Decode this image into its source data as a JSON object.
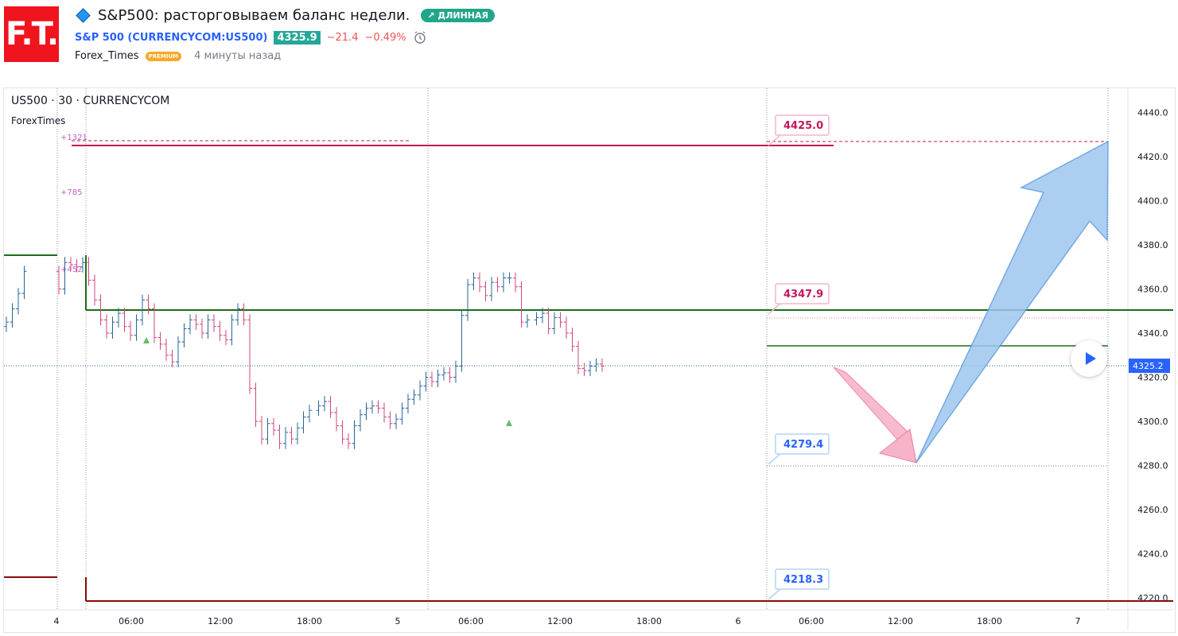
{
  "header": {
    "logo": "F.T.",
    "title": "S&P500: расторговываем баланс недели.",
    "badge": "↗ ДЛИННАЯ",
    "symbol_link": "S&P 500 (CURRENCYCOM:US500)",
    "price": "4325.9",
    "change": "−21.4",
    "change_pct": "−0.49%",
    "author": "Forex_Times",
    "author_badge": "PREMIUM",
    "time_ago": "4 минуты назад"
  },
  "chart": {
    "title": "US500 · 30 · CURRENCYCOM",
    "subtitle": "ForexTimes",
    "y_ticks": [
      "4440.0",
      "4420.0",
      "4400.0",
      "4380.0",
      "4360.0",
      "4340.0",
      "4320.0",
      "4300.0",
      "4280.0",
      "4260.0",
      "4240.0",
      "4220.0"
    ],
    "x_ticks": [
      "4",
      "06:00",
      "12:00",
      "18:00",
      "5",
      "06:00",
      "12:00",
      "18:00",
      "6",
      "06:00",
      "12:00",
      "18:00",
      "7"
    ],
    "current_price_label": "4325.2",
    "level_labels": [
      "4425.0",
      "4347.9",
      "4279.4",
      "4218.3"
    ],
    "vp_labels": [
      "+1321",
      "+785",
      "+452"
    ],
    "colors": {
      "up": "#2a6496",
      "down": "#d0467e",
      "green": "#1b6e1b",
      "darkred": "#8b0a0a",
      "magenta": "#c2185b",
      "blue_arrow": "#9ec7ef",
      "pink_arrow": "#f7b4c8"
    }
  },
  "chart_data": {
    "type": "ohlc",
    "title": "US500 · 30 · CURRENCYCOM",
    "ylim": [
      4215,
      4445
    ],
    "x": [
      "4",
      "06:00",
      "12:00",
      "18:00",
      "5",
      "06:00",
      "12:00",
      "18:00",
      "6",
      "06:00",
      "12:00",
      "18:00",
      "7"
    ],
    "closes": [
      4345,
      4351,
      4358,
      4368,
      4360,
      4372,
      4371,
      4370,
      4372,
      4364,
      4355,
      4346,
      4340,
      4345,
      4349,
      4343,
      4339,
      4346,
      4355,
      4351,
      4338,
      4335,
      4330,
      4327,
      4336,
      4342,
      4346,
      4344,
      4340,
      4346,
      4343,
      4339,
      4337,
      4346,
      4351,
      4346,
      4315,
      4300,
      4292,
      4299,
      4296,
      4290,
      4295,
      4292,
      4297,
      4302,
      4305,
      4307,
      4309,
      4304,
      4298,
      4292,
      4290,
      4298,
      4303,
      4306,
      4307,
      4306,
      4302,
      4299,
      4301,
      4306,
      4310,
      4312,
      4316,
      4320,
      4318,
      4321,
      4322,
      4320,
      4325,
      4348,
      4362,
      4365,
      4361,
      4357,
      4363,
      4361,
      4365,
      4365,
      4361,
      4345,
      4346,
      4347,
      4349,
      4342,
      4347,
      4345,
      4340,
      4334,
      4324,
      4323,
      4325,
      4326,
      4325
    ]
  }
}
